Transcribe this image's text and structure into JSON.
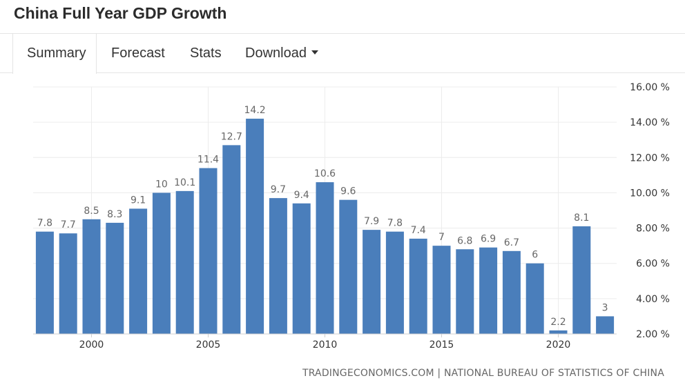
{
  "page": {
    "title": "China Full Year GDP Growth",
    "tabs": [
      {
        "label": "Summary",
        "active": true
      },
      {
        "label": "Forecast"
      },
      {
        "label": "Stats"
      },
      {
        "label": "Download",
        "icon": "caret-down-icon"
      }
    ],
    "source": "TRADINGECONOMICS.COM | NATIONAL BUREAU OF STATISTICS OF CHINA"
  },
  "chart_data": {
    "type": "bar",
    "title": "",
    "xlabel": "",
    "ylabel": "",
    "categories": [
      1998,
      1999,
      2000,
      2001,
      2002,
      2003,
      2004,
      2005,
      2006,
      2007,
      2008,
      2009,
      2010,
      2011,
      2012,
      2013,
      2014,
      2015,
      2016,
      2017,
      2018,
      2019,
      2020,
      2021,
      2022
    ],
    "values": [
      7.8,
      7.7,
      8.5,
      8.3,
      9.1,
      10,
      10.1,
      11.4,
      12.7,
      14.2,
      9.7,
      9.4,
      10.6,
      9.6,
      7.9,
      7.8,
      7.4,
      7,
      6.8,
      6.9,
      6.7,
      6,
      2.2,
      8.1,
      3
    ],
    "value_labels": [
      "7.8",
      "7.7",
      "8.5",
      "8.3",
      "9.1",
      "10",
      "10.1",
      "11.4",
      "12.7",
      "14.2",
      "9.7",
      "9.4",
      "10.6",
      "9.6",
      "7.9",
      "7.8",
      "7.4",
      "7",
      "6.8",
      "6.9",
      "6.7",
      "6",
      "2.2",
      "8.1",
      "3"
    ],
    "x_ticks": [
      2000,
      2005,
      2010,
      2015,
      2020
    ],
    "x_tick_labels": [
      "2000",
      "2005",
      "2010",
      "2015",
      "2020"
    ],
    "y_ticks": [
      2,
      4,
      6,
      8,
      10,
      12,
      14,
      16
    ],
    "y_tick_labels": [
      "2.00 %",
      "4.00 %",
      "6.00 %",
      "8.00 %",
      "10.00 %",
      "12.00 %",
      "14.00 %",
      "16.00 %"
    ],
    "ylim": [
      2,
      16
    ],
    "y_axis_position": "right",
    "grid": true,
    "bar_color": "#4a7ebb"
  }
}
